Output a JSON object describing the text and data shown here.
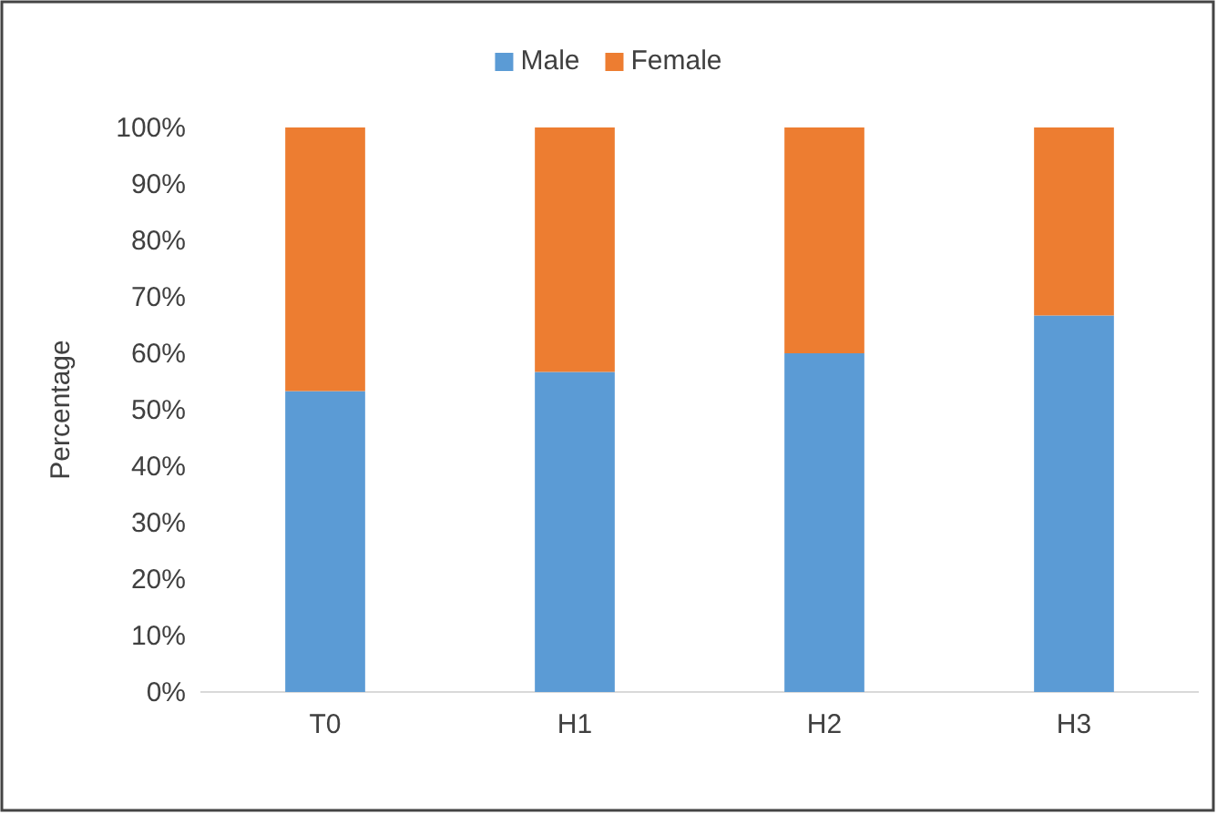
{
  "chart_data": {
    "type": "bar",
    "stacked": true,
    "categories": [
      "T0",
      "H1",
      "H2",
      "H3"
    ],
    "series": [
      {
        "name": "Male",
        "color": "#5b9bd5",
        "values": [
          53.3,
          56.7,
          60,
          66.7
        ]
      },
      {
        "name": "Female",
        "color": "#ed7d31",
        "values": [
          46.7,
          43.3,
          40,
          33.3
        ]
      }
    ],
    "ylabel": "Percentage",
    "ylim": [
      0,
      100
    ],
    "yticks": [
      {
        "value": 0,
        "label": "0%"
      },
      {
        "value": 10,
        "label": "10%"
      },
      {
        "value": 20,
        "label": "20%"
      },
      {
        "value": 30,
        "label": "30%"
      },
      {
        "value": 40,
        "label": "40%"
      },
      {
        "value": 50,
        "label": "50%"
      },
      {
        "value": 60,
        "label": "60%"
      },
      {
        "value": 70,
        "label": "70%"
      },
      {
        "value": 80,
        "label": "80%"
      },
      {
        "value": 90,
        "label": "90%"
      },
      {
        "value": 100,
        "label": "100%"
      }
    ],
    "legend": "top",
    "grid": false
  }
}
